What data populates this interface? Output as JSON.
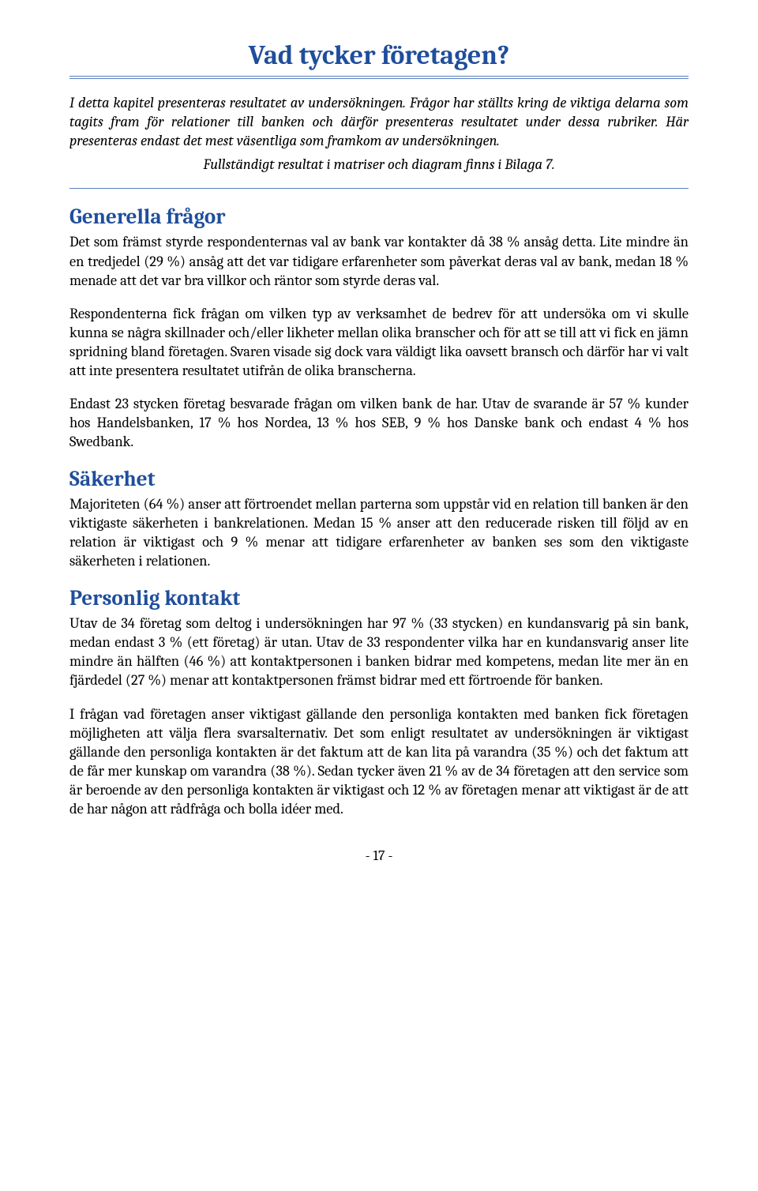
{
  "title": "Vad tycker företagen?",
  "intro": {
    "p1": "I detta kapitel presenteras resultatet av undersökningen. Frågor har ställts kring de viktiga delarna som tagits fram för relationer till banken och därför presenteras resultatet under dessa rubriker. Här presenteras endast det mest väsentliga som framkom av undersökningen.",
    "p2": "Fullständigt resultat i matriser och diagram finns i Bilaga 7."
  },
  "sections": {
    "generella": {
      "heading": "Generella frågor",
      "p1": "Det som främst styrde respondenternas val av bank var kontakter då 38 % ansåg detta. Lite mindre än en tredjedel (29 %) ansåg att det var tidigare erfarenheter som påverkat deras val av bank, medan 18 % menade att det var bra villkor och räntor som styrde deras val.",
      "p2": "Respondenterna fick frågan om vilken typ av verksamhet de bedrev för att undersöka om vi skulle kunna se några skillnader och/eller likheter mellan olika branscher och för att se till att vi fick en jämn spridning bland företagen. Svaren visade sig dock vara väldigt lika oavsett bransch och därför har vi valt att inte presentera resultatet utifrån de olika branscherna.",
      "p3": "Endast 23 stycken företag besvarade frågan om vilken bank de har. Utav de svarande är 57 % kunder hos Handelsbanken, 17 % hos Nordea, 13 % hos SEB, 9 % hos Danske bank och endast 4 % hos Swedbank."
    },
    "sakerhet": {
      "heading": "Säkerhet",
      "p1": "Majoriteten (64 %) anser att förtroendet mellan parterna som uppstår vid en relation till banken är den viktigaste säkerheten i bankrelationen. Medan 15 % anser att den reducerade risken till följd av en relation är viktigast och 9 % menar att tidigare erfarenheter av banken ses som den viktigaste säkerheten i relationen."
    },
    "personlig": {
      "heading": "Personlig kontakt",
      "p1": "Utav de 34 företag som deltog i undersökningen har 97 % (33 stycken) en kundansvarig på sin bank, medan endast 3 % (ett företag) är utan. Utav de 33 respondenter vilka har en kundansvarig anser lite mindre än hälften (46 %) att kontaktpersonen i banken bidrar med kompetens, medan lite mer än en fjärdedel (27 %) menar att kontaktpersonen främst bidrar med ett förtroende för banken.",
      "p2": "I frågan vad företagen anser viktigast gällande den personliga kontakten med banken fick företagen möjligheten att välja flera svarsalternativ. Det som enligt resultatet av undersökningen är viktigast gällande den personliga kontakten är det faktum att de kan lita på varandra (35 %) och det faktum att de får mer kunskap om varandra (38 %). Sedan tycker även 21 % av de 34 företagen att den service som är beroende av den personliga kontakten är viktigast och 12 % av företagen menar att viktigast är de att de har någon att rådfråga och bolla idéer med."
    }
  },
  "pageNumber": "- 17 -"
}
